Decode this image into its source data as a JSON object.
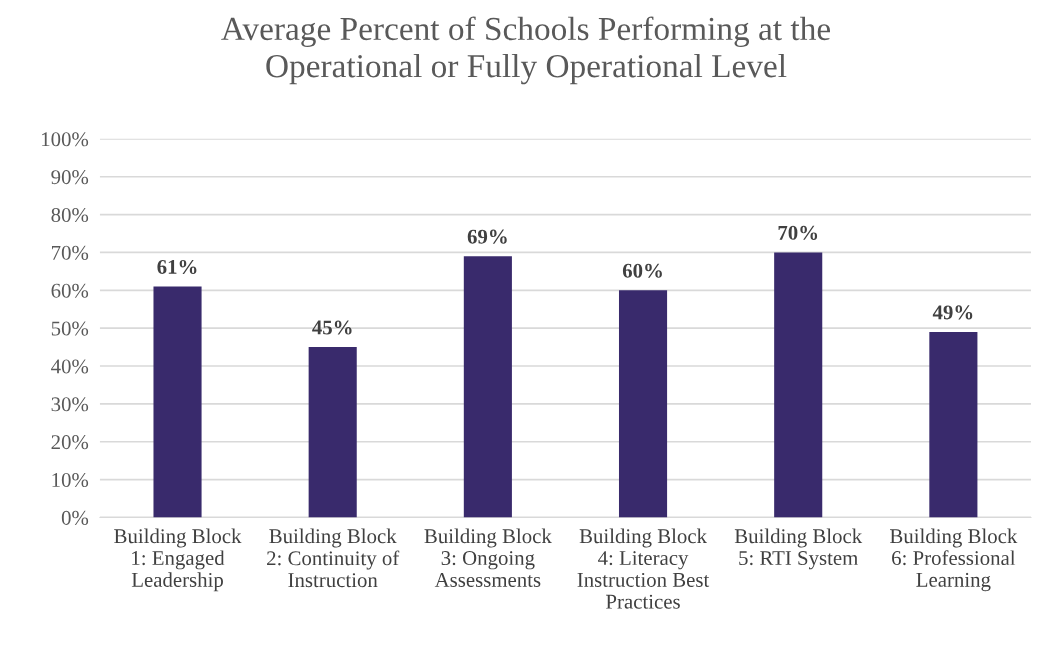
{
  "chart_data": {
    "type": "bar",
    "title": "Average Percent of Schools Performing at the\nOperational or Fully Operational Level",
    "categories": [
      "Building Block\n1: Engaged\nLeadership",
      "Building Block\n2: Continuity of\nInstruction",
      "Building Block\n3: Ongoing\nAssessments",
      "Building Block\n4: Literacy\nInstruction Best\nPractices",
      "Building Block\n5: RTI System",
      "Building Block\n6: Professional\nLearning"
    ],
    "values": [
      61,
      45,
      69,
      60,
      70,
      49
    ],
    "value_labels": [
      "61%",
      "45%",
      "69%",
      "60%",
      "70%",
      "49%"
    ],
    "color": "#392a6c",
    "ylim": [
      0,
      100
    ],
    "yticks": [
      {
        "value": 0,
        "label": "0%"
      },
      {
        "value": 10,
        "label": "10%"
      },
      {
        "value": 20,
        "label": "20%"
      },
      {
        "value": 30,
        "label": "30%"
      },
      {
        "value": 40,
        "label": "40%"
      },
      {
        "value": 50,
        "label": "50%"
      },
      {
        "value": 60,
        "label": "60%"
      },
      {
        "value": 70,
        "label": "70%"
      },
      {
        "value": 80,
        "label": "80%"
      },
      {
        "value": 90,
        "label": "90%"
      },
      {
        "value": 100,
        "label": "100%"
      }
    ],
    "grid": "y",
    "legend": false
  }
}
